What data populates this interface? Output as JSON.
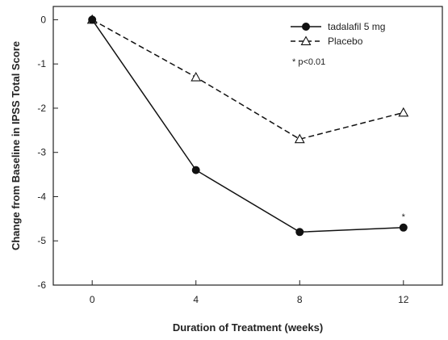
{
  "chart_data": {
    "type": "line",
    "xlabel": "Duration of Treatment (weeks)",
    "ylabel": "Change from Baseline in IPSS Total Score",
    "x": [
      0,
      4,
      8,
      12
    ],
    "xlim": [
      -1.5,
      13.5
    ],
    "ylim": [
      -6,
      0.3
    ],
    "xticks": [
      0,
      4,
      8,
      12
    ],
    "yticks": [
      0,
      -1,
      -2,
      -3,
      -4,
      -5,
      -6
    ],
    "grid": false,
    "legend_position": "top-right",
    "series": [
      {
        "name": "tadalafil 5 mg",
        "values": [
          0,
          -3.4,
          -4.8,
          -4.7
        ],
        "marker": "filled-circle",
        "line": "solid",
        "color": "#111111"
      },
      {
        "name": "Placebo",
        "values": [
          0,
          -1.3,
          -2.7,
          -2.1
        ],
        "marker": "open-triangle",
        "line": "dashed",
        "color": "#111111"
      }
    ],
    "annotations": [
      {
        "text": "*",
        "x": 12,
        "y": -4.7,
        "series": 0
      },
      {
        "text": "* p<0.01",
        "placement": "legend-note"
      }
    ]
  }
}
